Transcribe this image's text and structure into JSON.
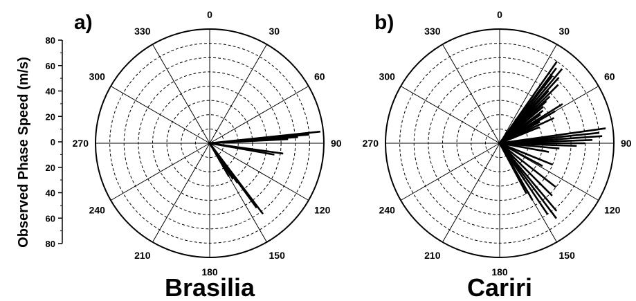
{
  "chart_data": {
    "type": "polar-lines",
    "y_axis": {
      "label": "Observed Phase Speed (m/s)",
      "ticks": [
        "80",
        "60",
        "40",
        "20",
        "0",
        "20",
        "40",
        "60",
        "80"
      ],
      "range": [
        0,
        80
      ]
    },
    "angle_ticks": [
      "0",
      "30",
      "60",
      "90",
      "120",
      "150",
      "180",
      "210",
      "240",
      "270",
      "300",
      "330"
    ],
    "grid": "dashed concentric rings every 10 m/s, radial lines every 30°",
    "panels": [
      {
        "panel_label": "a)",
        "station": "Brasilia",
        "segments": [
          {
            "azimuth": 84,
            "speed": 78
          },
          {
            "azimuth": 85,
            "speed": 70
          },
          {
            "azimuth": 86,
            "speed": 62
          },
          {
            "azimuth": 87,
            "speed": 55
          },
          {
            "azimuth": 98,
            "speed": 52
          },
          {
            "azimuth": 100,
            "speed": 46
          },
          {
            "azimuth": 143,
            "speed": 62
          },
          {
            "azimuth": 144,
            "speed": 56
          },
          {
            "azimuth": 145,
            "speed": 34
          },
          {
            "azimuth": 147,
            "speed": 30
          },
          {
            "azimuth": 150,
            "speed": 27
          },
          {
            "azimuth": 148,
            "speed": 22
          }
        ]
      },
      {
        "panel_label": "b)",
        "station": "Cariri",
        "segments": [
          {
            "azimuth": 35,
            "speed": 70
          },
          {
            "azimuth": 37,
            "speed": 66
          },
          {
            "azimuth": 38,
            "speed": 60
          },
          {
            "azimuth": 40,
            "speed": 68
          },
          {
            "azimuth": 40,
            "speed": 55
          },
          {
            "azimuth": 42,
            "speed": 62
          },
          {
            "azimuth": 43,
            "speed": 50
          },
          {
            "azimuth": 45,
            "speed": 58
          },
          {
            "azimuth": 47,
            "speed": 48
          },
          {
            "azimuth": 48,
            "speed": 44
          },
          {
            "azimuth": 50,
            "speed": 40
          },
          {
            "azimuth": 53,
            "speed": 38
          },
          {
            "azimuth": 55,
            "speed": 35
          },
          {
            "azimuth": 58,
            "speed": 52
          },
          {
            "azimuth": 60,
            "speed": 45
          },
          {
            "azimuth": 62,
            "speed": 32
          },
          {
            "azimuth": 65,
            "speed": 42
          },
          {
            "azimuth": 68,
            "speed": 30
          },
          {
            "azimuth": 82,
            "speed": 75
          },
          {
            "azimuth": 84,
            "speed": 70
          },
          {
            "azimuth": 86,
            "speed": 72
          },
          {
            "azimuth": 88,
            "speed": 65
          },
          {
            "azimuth": 90,
            "speed": 60
          },
          {
            "azimuth": 92,
            "speed": 54
          },
          {
            "azimuth": 95,
            "speed": 42
          },
          {
            "azimuth": 100,
            "speed": 35
          },
          {
            "azimuth": 112,
            "speed": 40
          },
          {
            "azimuth": 118,
            "speed": 34
          },
          {
            "azimuth": 128,
            "speed": 50
          },
          {
            "azimuth": 135,
            "speed": 52
          },
          {
            "azimuth": 140,
            "speed": 62
          },
          {
            "azimuth": 143,
            "speed": 66
          },
          {
            "azimuth": 146,
            "speed": 60
          },
          {
            "azimuth": 150,
            "speed": 46
          },
          {
            "azimuth": 152,
            "speed": 40
          }
        ]
      }
    ]
  }
}
